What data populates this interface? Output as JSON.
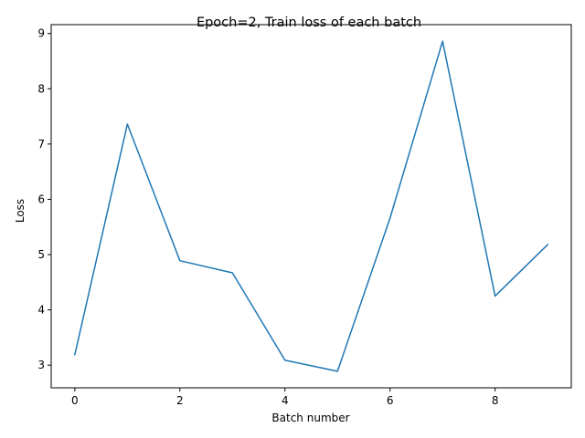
{
  "chart_data": {
    "type": "line",
    "title": "Epoch=2, Train loss of each batch",
    "xlabel": "Batch number",
    "ylabel": "Loss",
    "x": [
      0,
      1,
      2,
      3,
      4,
      5,
      6,
      7,
      8,
      9
    ],
    "series": [
      {
        "values": [
          3.19,
          7.36,
          4.89,
          4.67,
          3.09,
          2.89,
          5.66,
          8.86,
          4.25,
          5.18
        ],
        "color": "#1f77b4"
      }
    ],
    "xlim": [
      -0.45,
      9.45
    ],
    "ylim": [
      2.59,
      9.16
    ],
    "xticks": [
      0,
      2,
      4,
      6,
      8
    ],
    "xtick_labels": [
      "0",
      "2",
      "4",
      "6",
      "8"
    ],
    "yticks": [
      3,
      4,
      5,
      6,
      7,
      8,
      9
    ],
    "ytick_labels": [
      "3",
      "4",
      "5",
      "6",
      "7",
      "8",
      "9"
    ],
    "grid": false,
    "legend": "none"
  }
}
